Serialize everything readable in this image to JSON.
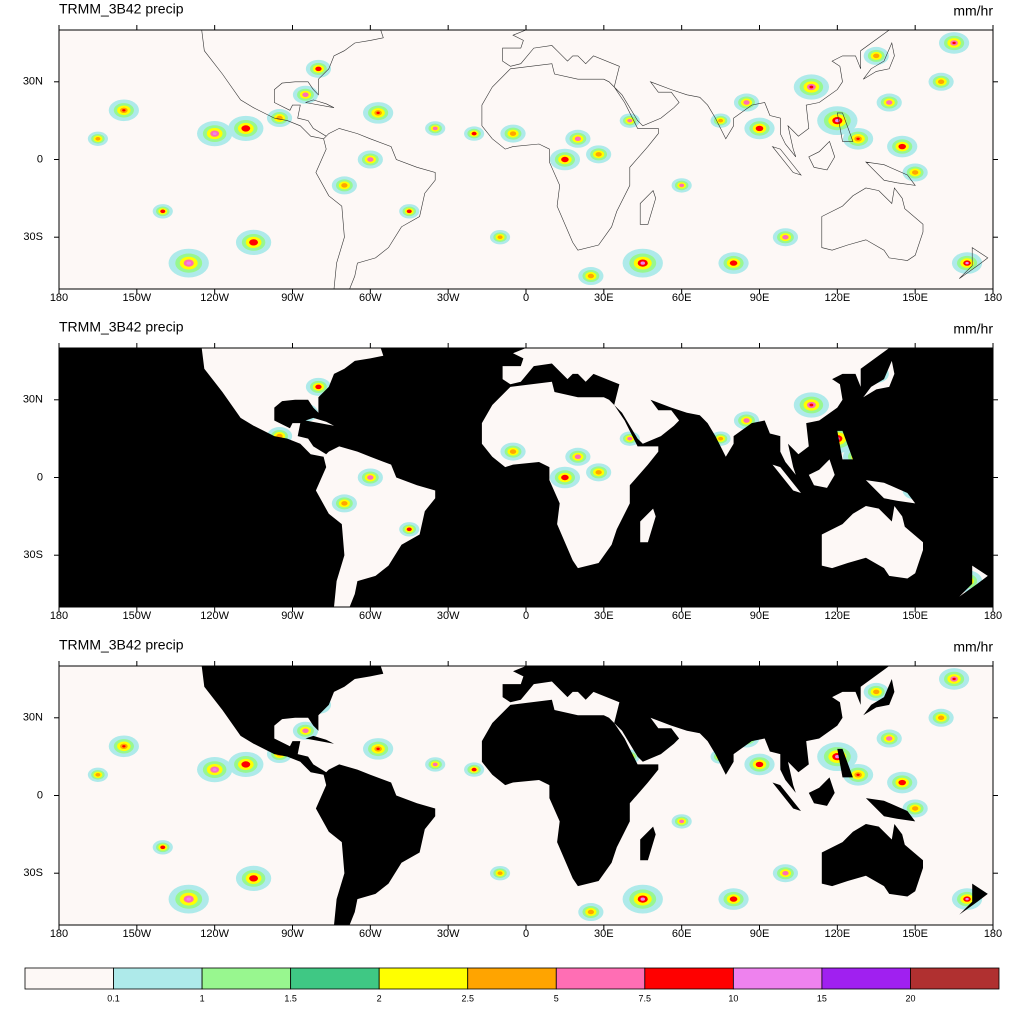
{
  "panels": [
    {
      "title": "TRMM_3B42 precip",
      "units": "mm/hr",
      "mask": "none"
    },
    {
      "title": "TRMM_3B42 precip",
      "units": "mm/hr",
      "mask": "ocean"
    },
    {
      "title": "TRMM_3B42 precip",
      "units": "mm/hr",
      "mask": "land"
    }
  ],
  "lon_labels": [
    "180",
    "150W",
    "120W",
    "90W",
    "60W",
    "30W",
    "0",
    "30E",
    "60E",
    "90E",
    "120E",
    "150E",
    "180"
  ],
  "lat_labels": [
    "30N",
    "0",
    "30S"
  ],
  "colorbar": {
    "labels": [
      "0.1",
      "1",
      "1.5",
      "2",
      "2.5",
      "5",
      "7.5",
      "10",
      "15",
      "20"
    ],
    "colors": [
      "#fdf8f6",
      "#aeeaea",
      "#98f78f",
      "#3fc884",
      "#ffff00",
      "#ffa400",
      "#ff6eb4",
      "#ff0000",
      "#ee82ee",
      "#a020f0",
      "#b03030"
    ]
  }
}
